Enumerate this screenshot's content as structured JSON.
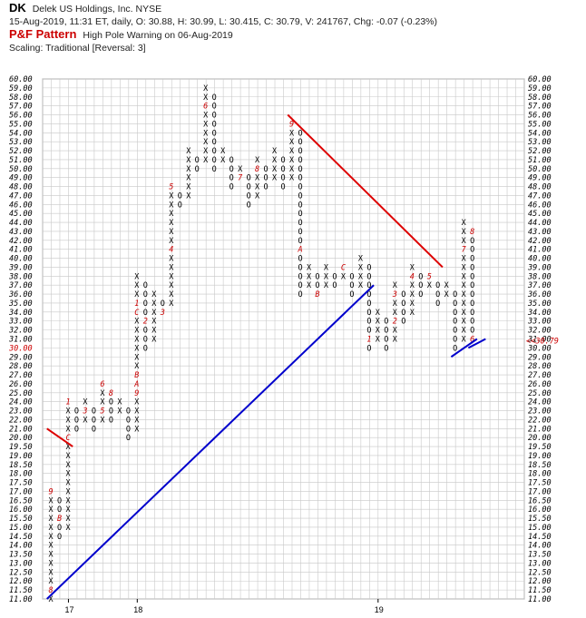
{
  "header": {
    "ticker": "DK",
    "company": "Delek US Holdings, Inc.  NYSE",
    "quote": "15-Aug-2019, 11:31 ET, daily, O: 30.88, H: 30.99, L: 30.415, C: 30.79, V: 241767, Chg: -0.07 (-0.23%)",
    "pf_label": "P&F Pattern",
    "pattern": "High Pole Warning on 06-Aug-2019",
    "scaling": "Scaling: Traditional [Reversal: 3]"
  },
  "chart_data": {
    "type": "point-and-figure",
    "title": "DK",
    "price_levels": [
      11.0,
      11.5,
      12.0,
      12.5,
      13.0,
      13.5,
      14.0,
      14.5,
      15.0,
      15.5,
      16.0,
      16.5,
      17.0,
      17.5,
      18.0,
      18.5,
      19.0,
      19.5,
      20.0,
      21.0,
      22.0,
      23.0,
      24.0,
      25.0,
      26.0,
      27.0,
      28.0,
      29.0,
      30.0,
      31.0,
      32.0,
      33.0,
      34.0,
      35.0,
      36.0,
      37.0,
      38.0,
      39.0,
      40.0,
      41.0,
      42.0,
      43.0,
      44.0,
      45.0,
      46.0,
      47.0,
      48.0,
      49.0,
      50.0,
      51.0,
      52.0,
      53.0,
      54.0,
      55.0,
      56.0,
      57.0,
      58.0,
      59.0,
      60.0
    ],
    "y_labels": [
      "11.00",
      "11.50",
      "12.00",
      "12.50",
      "13.00",
      "13.50",
      "14.00",
      "14.50",
      "15.00",
      "15.50",
      "16.00",
      "16.50",
      "17.00",
      "17.50",
      "18.00",
      "18.50",
      "19.00",
      "19.50",
      "20.00",
      "21.00",
      "22.00",
      "23.00",
      "24.00",
      "25.00",
      "26.00",
      "27.00",
      "28.00",
      "29.00",
      "30.00",
      "31.00",
      "32.00",
      "33.00",
      "34.00",
      "35.00",
      "36.00",
      "37.00",
      "38.00",
      "39.00",
      "40.00",
      "41.00",
      "42.00",
      "43.00",
      "44.00",
      "45.00",
      "46.00",
      "47.00",
      "48.00",
      "49.00",
      "50.00",
      "51.00",
      "52.00",
      "53.00",
      "54.00",
      "55.00",
      "56.00",
      "57.00",
      "58.00",
      "59.00",
      "60.00"
    ],
    "last_price_label": "<<30.79",
    "highlight_left_label": "30.00",
    "x_date_labels": [
      {
        "label": "17",
        "col": 2
      },
      {
        "label": "18",
        "col": 10
      },
      {
        "label": "19",
        "col": 38
      }
    ],
    "columns": [
      {
        "type": "X",
        "from": 11.0,
        "to": 17.0,
        "marks": {
          "11.50": "8",
          "17.00": "9"
        }
      },
      {
        "type": "O",
        "from": 16.5,
        "to": 14.5,
        "marks": {
          "15.50": "B"
        }
      },
      {
        "type": "X",
        "from": 15.0,
        "to": 24.0,
        "marks": {
          "20.00": "C",
          "24.00": "1"
        }
      },
      {
        "type": "O",
        "from": 23.0,
        "to": 21.0,
        "marks": {}
      },
      {
        "type": "X",
        "from": 22.0,
        "to": 24.0,
        "marks": {
          "23.00": "3"
        }
      },
      {
        "type": "O",
        "from": 23.0,
        "to": 21.0,
        "marks": {
          "24.00": "4"
        }
      },
      {
        "type": "X",
        "from": 22.0,
        "to": 26.0,
        "marks": {
          "23.00": "5",
          "26.00": "6"
        }
      },
      {
        "type": "O",
        "from": 25.0,
        "to": 22.0,
        "marks": {
          "25.00": "8"
        }
      },
      {
        "type": "X",
        "from": 23.0,
        "to": 24.0,
        "marks": {}
      },
      {
        "type": "O",
        "from": 23.0,
        "to": 20.0,
        "marks": {}
      },
      {
        "type": "X",
        "from": 21.0,
        "to": 38.0,
        "marks": {
          "25.00": "9",
          "26.00": "A",
          "27.00": "B",
          "34.00": "C",
          "35.00": "1"
        }
      },
      {
        "type": "O",
        "from": 37.0,
        "to": 30.0,
        "marks": {
          "33.00": "2"
        }
      },
      {
        "type": "X",
        "from": 31.0,
        "to": 36.0,
        "marks": {}
      },
      {
        "type": "O",
        "from": 35.0,
        "to": 34.0,
        "marks": {
          "34.00": "3"
        }
      },
      {
        "type": "X",
        "from": 35.0,
        "to": 48.0,
        "marks": {
          "41.00": "4",
          "48.00": "5"
        }
      },
      {
        "type": "O",
        "from": 47.0,
        "to": 46.0,
        "marks": {}
      },
      {
        "type": "X",
        "from": 47.0,
        "to": 52.0,
        "marks": {}
      },
      {
        "type": "O",
        "from": 51.0,
        "to": 50.0,
        "marks": {}
      },
      {
        "type": "X",
        "from": 51.0,
        "to": 59.0,
        "marks": {
          "57.00": "6"
        }
      },
      {
        "type": "O",
        "from": 58.0,
        "to": 50.0,
        "marks": {}
      },
      {
        "type": "X",
        "from": 51.0,
        "to": 52.0,
        "marks": {}
      },
      {
        "type": "O",
        "from": 51.0,
        "to": 48.0,
        "marks": {}
      },
      {
        "type": "X",
        "from": 49.0,
        "to": 50.0,
        "marks": {
          "49.00": "7"
        }
      },
      {
        "type": "O",
        "from": 49.0,
        "to": 46.0,
        "marks": {}
      },
      {
        "type": "X",
        "from": 47.0,
        "to": 51.0,
        "marks": {
          "50.00": "8"
        }
      },
      {
        "type": "O",
        "from": 50.0,
        "to": 48.0,
        "marks": {}
      },
      {
        "type": "X",
        "from": 49.0,
        "to": 52.0,
        "marks": {}
      },
      {
        "type": "O",
        "from": 51.0,
        "to": 48.0,
        "marks": {}
      },
      {
        "type": "X",
        "from": 49.0,
        "to": 55.0,
        "marks": {
          "55.00": "9"
        }
      },
      {
        "type": "O",
        "from": 54.0,
        "to": 36.0,
        "marks": {
          "41.00": "A"
        }
      },
      {
        "type": "X",
        "from": 37.0,
        "to": 39.0,
        "marks": {}
      },
      {
        "type": "O",
        "from": 38.0,
        "to": 36.0,
        "marks": {
          "36.00": "B"
        }
      },
      {
        "type": "X",
        "from": 37.0,
        "to": 39.0,
        "marks": {}
      },
      {
        "type": "O",
        "from": 38.0,
        "to": 37.0,
        "marks": {}
      },
      {
        "type": "X",
        "from": 38.0,
        "to": 39.0,
        "marks": {
          "39.00": "C"
        }
      },
      {
        "type": "O",
        "from": 38.0,
        "to": 36.0,
        "marks": {}
      },
      {
        "type": "X",
        "from": 37.0,
        "to": 40.0,
        "marks": {}
      },
      {
        "type": "O",
        "from": 39.0,
        "to": 30.0,
        "marks": {
          "31.00": "1"
        }
      },
      {
        "type": "X",
        "from": 31.0,
        "to": 34.0,
        "marks": {}
      },
      {
        "type": "O",
        "from": 33.0,
        "to": 30.0,
        "marks": {}
      },
      {
        "type": "X",
        "from": 31.0,
        "to": 37.0,
        "marks": {
          "33.00": "2",
          "36.00": "3"
        }
      },
      {
        "type": "O",
        "from": 36.0,
        "to": 33.0,
        "marks": {}
      },
      {
        "type": "X",
        "from": 34.0,
        "to": 39.0,
        "marks": {
          "38.00": "4"
        }
      },
      {
        "type": "O",
        "from": 38.0,
        "to": 36.0,
        "marks": {}
      },
      {
        "type": "X",
        "from": 37.0,
        "to": 38.0,
        "marks": {
          "38.00": "5"
        }
      },
      {
        "type": "O",
        "from": 37.0,
        "to": 35.0,
        "marks": {}
      },
      {
        "type": "X",
        "from": 36.0,
        "to": 37.0,
        "marks": {}
      },
      {
        "type": "O",
        "from": 36.0,
        "to": 30.0,
        "marks": {}
      },
      {
        "type": "X",
        "from": 31.0,
        "to": 44.0,
        "marks": {
          "41.00": "7"
        }
      },
      {
        "type": "O",
        "from": 43.0,
        "to": 31.0,
        "marks": {
          "31.00": "6",
          "43.00": "8"
        }
      }
    ],
    "trendlines": [
      {
        "name": "resistance",
        "color": "#dd0000",
        "from": {
          "col": 0,
          "price": 21.0
        },
        "to": {
          "col": 2,
          "price": 19.5
        }
      },
      {
        "name": "support",
        "color": "#0000cc",
        "from": {
          "col": 0,
          "price": 11.0
        },
        "to": {
          "col": 37,
          "price": 37.0
        }
      },
      {
        "name": "resistance",
        "color": "#dd0000",
        "from": {
          "col": 28,
          "price": 56.0
        },
        "to": {
          "col": 45,
          "price": 39.0
        }
      },
      {
        "name": "support",
        "color": "#0000cc",
        "from": {
          "col": 47,
          "price": 29.0
        },
        "to": {
          "col": 49,
          "price": 31.0
        }
      },
      {
        "name": "support",
        "color": "#0000cc",
        "from": {
          "col": 49,
          "price": 30.0
        },
        "to": {
          "col": 50,
          "price": 31.0
        }
      }
    ],
    "colors": {
      "grid": "#c8c8c8",
      "mark": "#cc0000",
      "support": "#0000cc",
      "resistance": "#dd0000"
    }
  }
}
